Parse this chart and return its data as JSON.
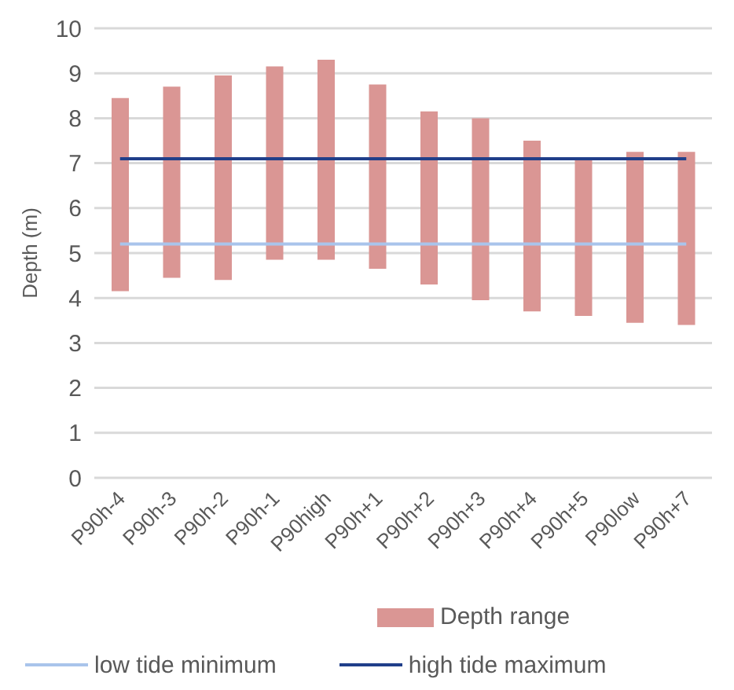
{
  "chart_data": {
    "type": "bar",
    "ylabel": "Depth (m)",
    "categories": [
      "P90h-4",
      "P90h-3",
      "P90h-2",
      "P90h-1",
      "P90high",
      "P90h+1",
      "P90h+2",
      "P90h+3",
      "P90h+4",
      "P90h+5",
      "P90low",
      "P90h+7"
    ],
    "series": [
      {
        "name": "Depth range",
        "color": "#da9694",
        "base": [
          4.15,
          4.45,
          4.4,
          4.85,
          4.85,
          4.65,
          4.3,
          3.95,
          3.7,
          3.6,
          3.45,
          3.4
        ],
        "values": [
          4.3,
          4.25,
          4.55,
          4.3,
          4.45,
          4.1,
          3.85,
          4.05,
          3.8,
          3.5,
          3.8,
          3.85
        ]
      },
      {
        "name": "low tide minimum",
        "type": "line",
        "color": "#a9c4eb",
        "values": [
          5.2,
          5.2,
          5.2,
          5.2,
          5.2,
          5.2,
          5.2,
          5.2,
          5.2,
          5.2,
          5.2,
          5.2
        ]
      },
      {
        "name": "high tide maximum",
        "type": "line",
        "color": "#203f8a",
        "values": [
          7.1,
          7.1,
          7.1,
          7.1,
          7.1,
          7.1,
          7.1,
          7.1,
          7.1,
          7.1,
          7.1,
          7.1
        ]
      }
    ],
    "ylim": [
      0,
      10
    ],
    "yticks": [
      0,
      1,
      2,
      3,
      4,
      5,
      6,
      7,
      8,
      9,
      10
    ],
    "grid": "y",
    "legend": "bottom",
    "marker": "none",
    "line_style": "solid"
  }
}
